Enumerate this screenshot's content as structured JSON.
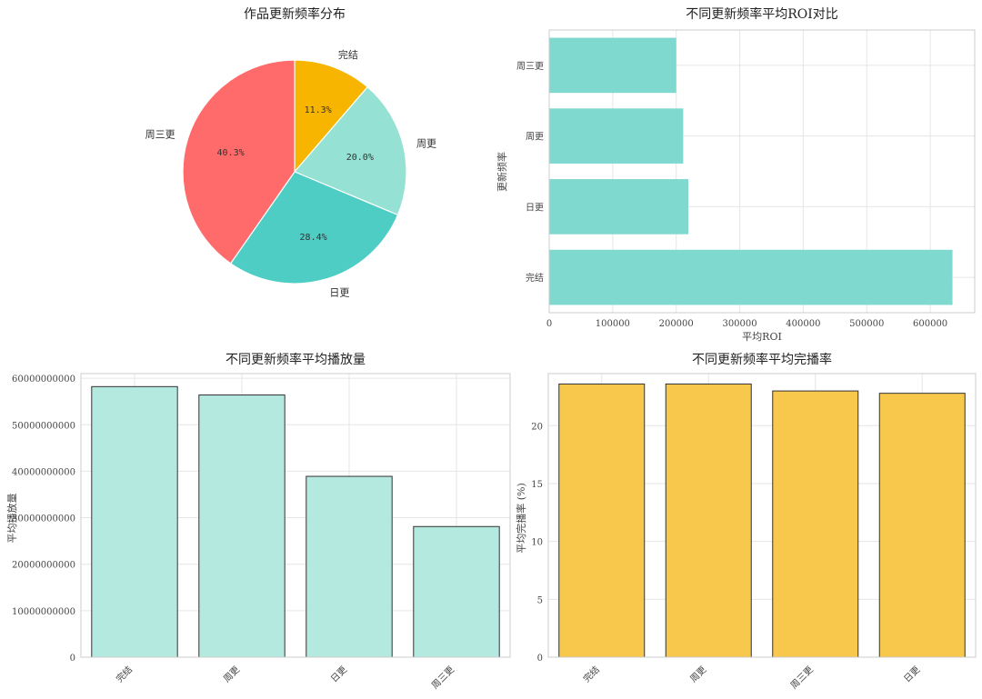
{
  "colors": {
    "coral": "#FF6B6B",
    "teal": "#4ECDC4",
    "mint": "#95E1D3",
    "gold": "#F8B500",
    "bar_teal": "#7FD9CE",
    "bar_mint": "#B4E9E0",
    "bar_gold": "#F8C84C",
    "grid": "#e6e6e6",
    "spine": "#cccccc"
  },
  "chart_data": [
    {
      "type": "pie",
      "title": "作品更新频率分布",
      "slices": [
        {
          "label": "完结",
          "value": 11.3,
          "pct_label": "11.3%",
          "color": "#F8B500"
        },
        {
          "label": "周更",
          "value": 20.0,
          "pct_label": "20.0%",
          "color": "#95E1D3"
        },
        {
          "label": "日更",
          "value": 28.4,
          "pct_label": "28.4%",
          "color": "#4ECDC4"
        },
        {
          "label": "周三更",
          "value": 40.3,
          "pct_label": "40.3%",
          "color": "#FF6B6B"
        }
      ]
    },
    {
      "type": "bar",
      "orientation": "horizontal",
      "title": "不同更新频率平均ROI对比",
      "xlabel": "平均ROI",
      "ylabel": "更新频率",
      "categories": [
        "完结",
        "日更",
        "周更",
        "周三更"
      ],
      "values": [
        635000,
        219000,
        211000,
        200000
      ],
      "xlim": [
        0,
        670000
      ],
      "xticks": [
        0,
        100000,
        200000,
        300000,
        400000,
        500000,
        600000
      ],
      "grid": true
    },
    {
      "type": "bar",
      "title": "不同更新频率平均播放量",
      "ylabel": "平均播放量",
      "categories": [
        "完结",
        "周更",
        "日更",
        "周三更"
      ],
      "values": [
        58200000000,
        56400000000,
        38900000000,
        28100000000
      ],
      "ylim": [
        0,
        61000000000
      ],
      "yticks": [
        0,
        10000000000,
        20000000000,
        30000000000,
        40000000000,
        50000000000,
        60000000000
      ],
      "grid": true
    },
    {
      "type": "bar",
      "title": "不同更新频率平均完播率",
      "ylabel": "平均完播率 (%)",
      "categories": [
        "完结",
        "周更",
        "周三更",
        "日更"
      ],
      "values": [
        23.6,
        23.6,
        23.0,
        22.8
      ],
      "ylim": [
        0,
        24.5
      ],
      "yticks": [
        0,
        5,
        10,
        15,
        20
      ],
      "grid": true
    }
  ]
}
